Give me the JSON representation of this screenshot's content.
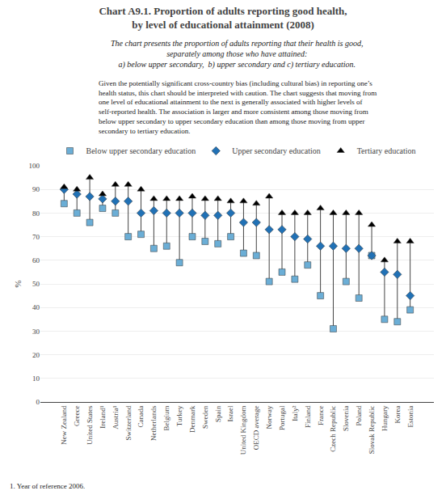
{
  "chart_data": {
    "type": "scatter",
    "title": "Chart A9.1. Proportion of adults reporting good health,\nby level of educational attainment (2008)",
    "subtitle": "The chart presents the proportion of adults reporting that their health is good,\nseparately among those who have attained:\na) below upper secondary,  b) upper secondary and c) tertiary education.",
    "annotations": [
      {
        "text": "Given the potentially significant cross-country bias (including cultural bias) in reporting one’s\nhealth status, this chart should be interpreted with caution. The chart suggests that moving from\none level of educational attainment to the next is generally associated with higher levels of\nself-reported health. The association is larger and more consistent among those moving from\nbelow upper secondary to upper secondary education than among those moving from upper\nsecondary to tertiary education."
      },
      {
        "text": "1. Year of reference 2006."
      }
    ],
    "y_label": "%",
    "categories": [
      "New Zealand",
      "Greece",
      "United States",
      "Ireland¹",
      "Austria¹",
      "Switzerland",
      "Canada",
      "Netherlands",
      "Belgium",
      "Turkey",
      "Denmark",
      "Sweden",
      "Spain",
      "Israel",
      "United Kingdom",
      "OECD average",
      "Norway",
      "Portugal",
      "Italy²",
      "Finland",
      "France",
      "Czech Republic",
      "Slovenia",
      "Poland",
      "Slovak Republic",
      "Hungary",
      "Korea",
      "Estonia"
    ],
    "series": [
      {
        "name": "Below upper secondary education",
        "color": "#6baed6",
        "marker": "square",
        "values": [
          84,
          80,
          76,
          82,
          80,
          70,
          71,
          65,
          66,
          59,
          70,
          68,
          67,
          70,
          63,
          62,
          51,
          55,
          52,
          58,
          45,
          31,
          51,
          44,
          62,
          35,
          34,
          39
        ]
      },
      {
        "name": "Upper secondary education",
        "color": "#2171b5",
        "marker": "diamond",
        "values": [
          90,
          88,
          87,
          86,
          85,
          85,
          80,
          81,
          80,
          80,
          80,
          79,
          79,
          80,
          76,
          76,
          73,
          73,
          70,
          69,
          66,
          66,
          65,
          65,
          62,
          55,
          54,
          45
        ]
      },
      {
        "name": "Tertiary education",
        "color": "black",
        "marker": "triangle-up",
        "values": [
          91,
          90,
          95,
          88,
          92,
          92,
          90,
          86,
          86,
          86,
          87,
          86,
          86,
          85,
          85,
          84,
          87,
          80,
          80,
          80,
          82,
          80,
          80,
          80,
          75,
          60,
          68,
          68
        ]
      }
    ],
    "ylim": [
      0,
      100
    ],
    "yticks": [
      0,
      10,
      20,
      30,
      40,
      50,
      60,
      70,
      80,
      90,
      100
    ],
    "grid": true,
    "legend": "top"
  }
}
